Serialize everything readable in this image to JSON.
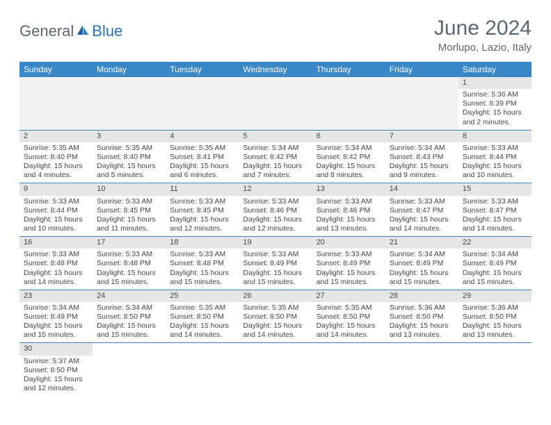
{
  "brand": {
    "text_general": "General",
    "text_blue": "Blue",
    "accent_color": "#2673b7",
    "muted_color": "#5a6770"
  },
  "title": "June 2024",
  "location": "Morlupo, Lazio, Italy",
  "header_bg": "#3a87c7",
  "daynum_bg": "#e6e6e6",
  "empty_bg": "#f2f2f2",
  "day_headers": [
    "Sunday",
    "Monday",
    "Tuesday",
    "Wednesday",
    "Thursday",
    "Friday",
    "Saturday"
  ],
  "weeks": [
    [
      null,
      null,
      null,
      null,
      null,
      null,
      {
        "n": "1",
        "sunrise": "Sunrise: 5:36 AM",
        "sunset": "Sunset: 8:39 PM",
        "daylight": "Daylight: 15 hours and 2 minutes."
      }
    ],
    [
      {
        "n": "2",
        "sunrise": "Sunrise: 5:35 AM",
        "sunset": "Sunset: 8:40 PM",
        "daylight": "Daylight: 15 hours and 4 minutes."
      },
      {
        "n": "3",
        "sunrise": "Sunrise: 5:35 AM",
        "sunset": "Sunset: 8:40 PM",
        "daylight": "Daylight: 15 hours and 5 minutes."
      },
      {
        "n": "4",
        "sunrise": "Sunrise: 5:35 AM",
        "sunset": "Sunset: 8:41 PM",
        "daylight": "Daylight: 15 hours and 6 minutes."
      },
      {
        "n": "5",
        "sunrise": "Sunrise: 5:34 AM",
        "sunset": "Sunset: 8:42 PM",
        "daylight": "Daylight: 15 hours and 7 minutes."
      },
      {
        "n": "6",
        "sunrise": "Sunrise: 5:34 AM",
        "sunset": "Sunset: 8:42 PM",
        "daylight": "Daylight: 15 hours and 8 minutes."
      },
      {
        "n": "7",
        "sunrise": "Sunrise: 5:34 AM",
        "sunset": "Sunset: 8:43 PM",
        "daylight": "Daylight: 15 hours and 9 minutes."
      },
      {
        "n": "8",
        "sunrise": "Sunrise: 5:33 AM",
        "sunset": "Sunset: 8:44 PM",
        "daylight": "Daylight: 15 hours and 10 minutes."
      }
    ],
    [
      {
        "n": "9",
        "sunrise": "Sunrise: 5:33 AM",
        "sunset": "Sunset: 8:44 PM",
        "daylight": "Daylight: 15 hours and 10 minutes."
      },
      {
        "n": "10",
        "sunrise": "Sunrise: 5:33 AM",
        "sunset": "Sunset: 8:45 PM",
        "daylight": "Daylight: 15 hours and 11 minutes."
      },
      {
        "n": "11",
        "sunrise": "Sunrise: 5:33 AM",
        "sunset": "Sunset: 8:45 PM",
        "daylight": "Daylight: 15 hours and 12 minutes."
      },
      {
        "n": "12",
        "sunrise": "Sunrise: 5:33 AM",
        "sunset": "Sunset: 8:46 PM",
        "daylight": "Daylight: 15 hours and 12 minutes."
      },
      {
        "n": "13",
        "sunrise": "Sunrise: 5:33 AM",
        "sunset": "Sunset: 8:46 PM",
        "daylight": "Daylight: 15 hours and 13 minutes."
      },
      {
        "n": "14",
        "sunrise": "Sunrise: 5:33 AM",
        "sunset": "Sunset: 8:47 PM",
        "daylight": "Daylight: 15 hours and 14 minutes."
      },
      {
        "n": "15",
        "sunrise": "Sunrise: 5:33 AM",
        "sunset": "Sunset: 8:47 PM",
        "daylight": "Daylight: 15 hours and 14 minutes."
      }
    ],
    [
      {
        "n": "16",
        "sunrise": "Sunrise: 5:33 AM",
        "sunset": "Sunset: 8:48 PM",
        "daylight": "Daylight: 15 hours and 14 minutes."
      },
      {
        "n": "17",
        "sunrise": "Sunrise: 5:33 AM",
        "sunset": "Sunset: 8:48 PM",
        "daylight": "Daylight: 15 hours and 15 minutes."
      },
      {
        "n": "18",
        "sunrise": "Sunrise: 5:33 AM",
        "sunset": "Sunset: 8:48 PM",
        "daylight": "Daylight: 15 hours and 15 minutes."
      },
      {
        "n": "19",
        "sunrise": "Sunrise: 5:33 AM",
        "sunset": "Sunset: 8:49 PM",
        "daylight": "Daylight: 15 hours and 15 minutes."
      },
      {
        "n": "20",
        "sunrise": "Sunrise: 5:33 AM",
        "sunset": "Sunset: 8:49 PM",
        "daylight": "Daylight: 15 hours and 15 minutes."
      },
      {
        "n": "21",
        "sunrise": "Sunrise: 5:34 AM",
        "sunset": "Sunset: 8:49 PM",
        "daylight": "Daylight: 15 hours and 15 minutes."
      },
      {
        "n": "22",
        "sunrise": "Sunrise: 5:34 AM",
        "sunset": "Sunset: 8:49 PM",
        "daylight": "Daylight: 15 hours and 15 minutes."
      }
    ],
    [
      {
        "n": "23",
        "sunrise": "Sunrise: 5:34 AM",
        "sunset": "Sunset: 8:49 PM",
        "daylight": "Daylight: 15 hours and 15 minutes."
      },
      {
        "n": "24",
        "sunrise": "Sunrise: 5:34 AM",
        "sunset": "Sunset: 8:50 PM",
        "daylight": "Daylight: 15 hours and 15 minutes."
      },
      {
        "n": "25",
        "sunrise": "Sunrise: 5:35 AM",
        "sunset": "Sunset: 8:50 PM",
        "daylight": "Daylight: 15 hours and 14 minutes."
      },
      {
        "n": "26",
        "sunrise": "Sunrise: 5:35 AM",
        "sunset": "Sunset: 8:50 PM",
        "daylight": "Daylight: 15 hours and 14 minutes."
      },
      {
        "n": "27",
        "sunrise": "Sunrise: 5:35 AM",
        "sunset": "Sunset: 8:50 PM",
        "daylight": "Daylight: 15 hours and 14 minutes."
      },
      {
        "n": "28",
        "sunrise": "Sunrise: 5:36 AM",
        "sunset": "Sunset: 8:50 PM",
        "daylight": "Daylight: 15 hours and 13 minutes."
      },
      {
        "n": "29",
        "sunrise": "Sunrise: 5:36 AM",
        "sunset": "Sunset: 8:50 PM",
        "daylight": "Daylight: 15 hours and 13 minutes."
      }
    ],
    [
      {
        "n": "30",
        "sunrise": "Sunrise: 5:37 AM",
        "sunset": "Sunset: 8:50 PM",
        "daylight": "Daylight: 15 hours and 12 minutes."
      },
      null,
      null,
      null,
      null,
      null,
      null
    ]
  ]
}
